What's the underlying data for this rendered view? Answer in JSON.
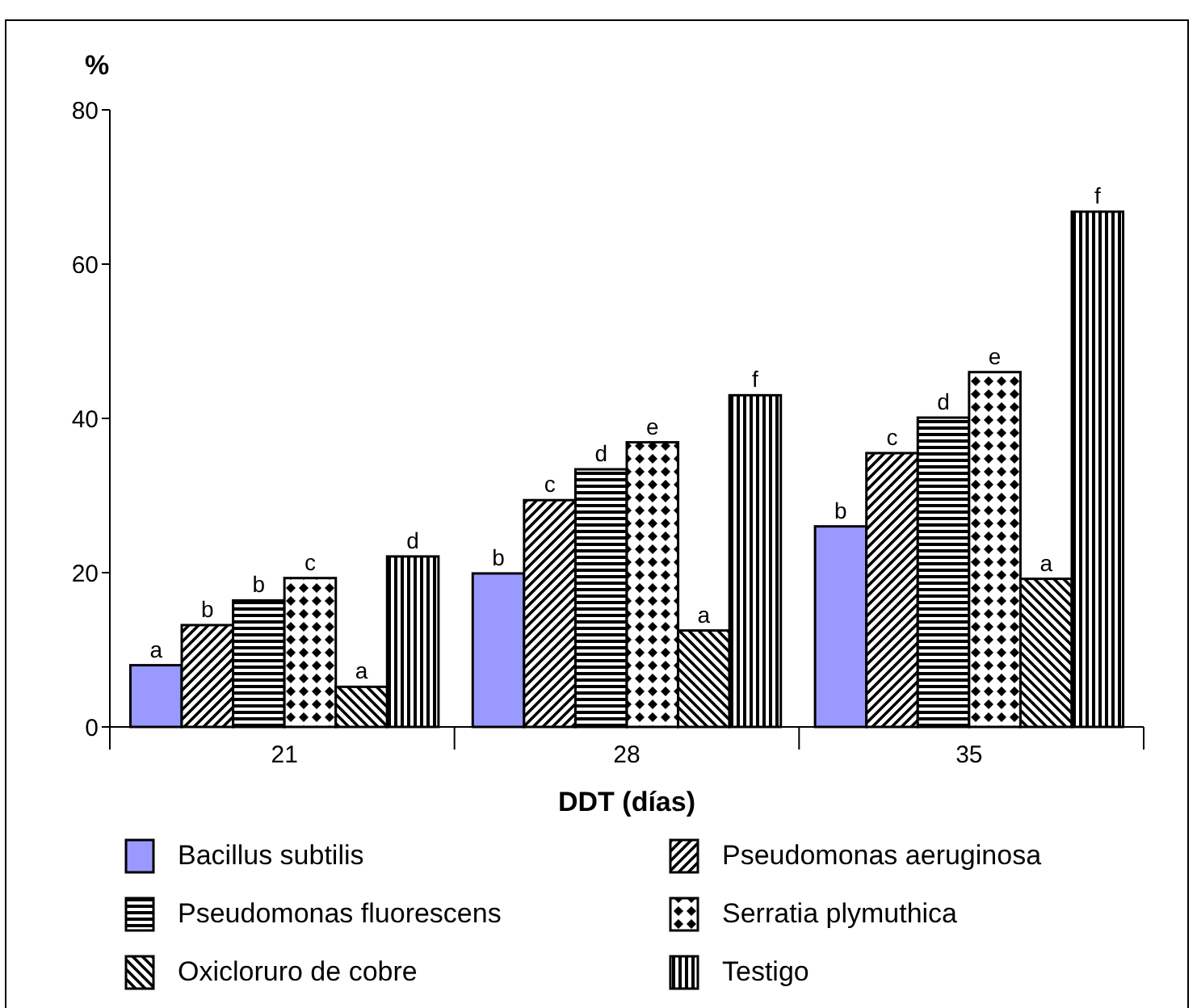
{
  "chart_data": {
    "type": "bar",
    "xlabel": "DDT (días)",
    "ylabel": "%",
    "categories": [
      "21",
      "28",
      "35"
    ],
    "ylim": [
      0,
      80
    ],
    "yticks": [
      0,
      20,
      40,
      60,
      80
    ],
    "grid": false,
    "legend": "bottom",
    "series": [
      {
        "name": "Bacillus subtilis",
        "color": "#9999ff",
        "values": [
          8.0,
          19.9,
          26.0
        ],
        "value_labels": [
          "a",
          "b",
          "b"
        ]
      },
      {
        "name": "Pseudomonas aeruginosa",
        "color": "#000000",
        "values": [
          13.2,
          29.4,
          35.5
        ],
        "value_labels": [
          "b",
          "c",
          "c"
        ]
      },
      {
        "name": "Pseudomonas fluorescens",
        "color": "#000000",
        "values": [
          16.4,
          33.4,
          40.1
        ],
        "value_labels": [
          "b",
          "d",
          "d"
        ]
      },
      {
        "name": "Serratia plymuthica",
        "color": "#000000",
        "values": [
          19.3,
          36.9,
          46.0
        ],
        "value_labels": [
          "c",
          "e",
          "e"
        ]
      },
      {
        "name": "Oxicloruro de cobre",
        "color": "#000000",
        "values": [
          5.2,
          12.5,
          19.2
        ],
        "value_labels": [
          "a",
          "a",
          "a"
        ]
      },
      {
        "name": "Testigo",
        "color": "#000000",
        "values": [
          22.1,
          43.0,
          66.8
        ],
        "value_labels": [
          "d",
          "f",
          "f"
        ]
      }
    ]
  }
}
